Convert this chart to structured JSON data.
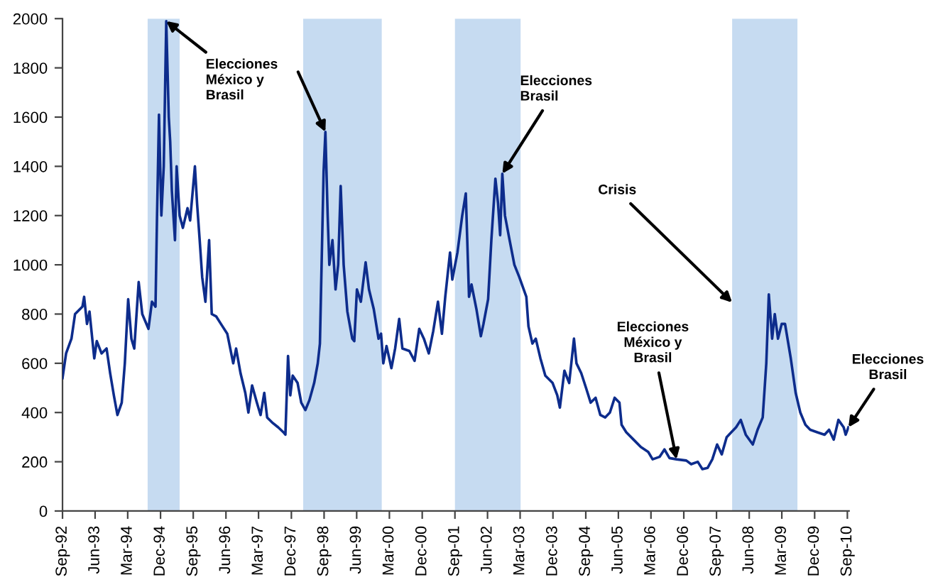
{
  "chart_data": {
    "type": "line",
    "x": [
      "1992-09-01",
      "1992-10-01",
      "1992-11-15",
      "1992-12-15",
      "1993-02-15",
      "1993-03-01",
      "1993-03-25",
      "1993-04-15",
      "1993-05-25",
      "1993-06-15",
      "1993-07-25",
      "1993-09-05",
      "1993-10-05",
      "1993-11-05",
      "1993-12-05",
      "1994-01-10",
      "1994-02-05",
      "1994-03-05",
      "1994-04-01",
      "1994-04-25",
      "1994-06-01",
      "1994-07-01",
      "1994-08-22",
      "1994-09-20",
      "1994-10-20",
      "1994-11-01",
      "1994-11-18",
      "1994-12-08",
      "1994-12-28",
      "1995-01-18",
      "1995-02-08",
      "1995-02-20",
      "1995-03-06",
      "1995-04-01",
      "1995-04-15",
      "1995-05-10",
      "1995-06-06",
      "1995-07-15",
      "1995-08-06",
      "1995-09-15",
      "1995-10-03",
      "1995-10-25",
      "1995-11-15",
      "1995-12-12",
      "1996-01-12",
      "1996-02-03",
      "1996-03-12",
      "1996-04-20",
      "1996-06-12",
      "1996-08-01",
      "1996-08-25",
      "1996-10-01",
      "1996-11-10",
      "1996-12-06",
      "1997-01-06",
      "1997-02-15",
      "1997-03-18",
      "1997-04-18",
      "1997-05-12",
      "1997-06-22",
      "1997-08-12",
      "1997-09-25",
      "1997-10-12",
      "1997-11-03",
      "1997-11-22",
      "1997-12-12",
      "1998-01-22",
      "1998-02-22",
      "1998-03-28",
      "1998-05-01",
      "1998-06-10",
      "1998-07-10",
      "1998-07-28",
      "1998-08-28",
      "1998-09-12",
      "1998-10-01",
      "1998-10-15",
      "1998-11-10",
      "1998-12-06",
      "1998-12-28",
      "1999-01-18",
      "1999-02-12",
      "1999-03-15",
      "1999-04-25",
      "1999-05-12",
      "1999-06-03",
      "1999-07-06",
      "1999-08-15",
      "1999-09-12",
      "1999-10-22",
      "1999-12-01",
      "1999-12-22",
      "2000-01-10",
      "2000-02-06",
      "2000-03-18",
      "2000-04-18",
      "2000-05-22",
      "2000-06-18",
      "2000-08-15",
      "2000-09-28",
      "2000-11-06",
      "2000-12-15",
      "2001-01-25",
      "2001-03-03",
      "2001-04-12",
      "2001-05-15",
      "2001-06-12",
      "2001-07-22",
      "2001-08-10",
      "2001-09-22",
      "2001-11-01",
      "2001-12-01",
      "2001-12-28",
      "2002-01-18",
      "2002-02-28",
      "2002-04-06",
      "2002-04-28",
      "2002-06-06",
      "2002-07-03",
      "2002-08-06",
      "2002-08-28",
      "2002-09-15",
      "2002-10-03",
      "2002-10-25",
      "2002-12-03",
      "2003-01-12",
      "2003-02-22",
      "2003-04-22",
      "2003-05-10",
      "2003-06-12",
      "2003-07-10",
      "2003-08-18",
      "2003-09-28",
      "2003-11-28",
      "2004-01-06",
      "2004-01-28",
      "2004-03-06",
      "2004-04-15",
      "2004-05-25",
      "2004-06-15",
      "2004-07-25",
      "2004-09-03",
      "2004-10-12",
      "2004-11-22",
      "2005-01-01",
      "2005-02-10",
      "2005-03-22",
      "2005-05-01",
      "2005-06-10",
      "2005-06-28",
      "2005-08-06",
      "2005-10-06",
      "2005-12-06",
      "2006-02-06",
      "2006-03-15",
      "2006-05-12",
      "2006-06-22",
      "2006-08-03",
      "2006-10-01",
      "2006-12-22",
      "2007-02-01",
      "2007-03-28",
      "2007-05-06",
      "2007-06-18",
      "2007-07-28",
      "2007-09-06",
      "2007-10-15",
      "2007-11-25",
      "2008-01-03",
      "2008-02-12",
      "2008-03-22",
      "2008-05-03",
      "2008-07-01",
      "2008-08-10",
      "2008-09-22",
      "2008-10-22",
      "2008-11-12",
      "2008-12-10",
      "2009-01-01",
      "2009-01-28",
      "2009-02-28",
      "2009-03-28",
      "2009-05-15",
      "2009-06-25",
      "2009-08-03",
      "2009-09-15",
      "2009-10-25",
      "2009-12-22",
      "2010-02-22",
      "2010-04-01",
      "2010-05-10",
      "2010-06-18",
      "2010-08-01",
      "2010-08-18",
      "2010-09-10"
    ],
    "series": [
      {
        "color": "#0d2c8c",
        "values": [
          540,
          640,
          700,
          800,
          830,
          870,
          760,
          810,
          620,
          690,
          640,
          660,
          560,
          470,
          390,
          440,
          600,
          860,
          700,
          660,
          930,
          800,
          740,
          850,
          830,
          1180,
          1610,
          1200,
          1400,
          1990,
          1600,
          1500,
          1300,
          1100,
          1400,
          1200,
          1150,
          1230,
          1180,
          1400,
          1250,
          1100,
          950,
          850,
          1100,
          800,
          790,
          760,
          720,
          600,
          660,
          560,
          480,
          400,
          510,
          440,
          390,
          480,
          380,
          360,
          340,
          320,
          310,
          630,
          470,
          550,
          520,
          440,
          410,
          450,
          520,
          600,
          680,
          1380,
          1540,
          1200,
          1000,
          1100,
          900,
          1000,
          1320,
          1000,
          810,
          700,
          690,
          900,
          850,
          1010,
          900,
          820,
          700,
          720,
          600,
          670,
          580,
          660,
          780,
          660,
          650,
          610,
          740,
          700,
          640,
          730,
          850,
          720,
          870,
          1050,
          940,
          1050,
          1200,
          1290,
          870,
          920,
          820,
          710,
          760,
          860,
          1100,
          1350,
          1250,
          1120,
          1370,
          1200,
          1100,
          1000,
          950,
          870,
          750,
          680,
          700,
          620,
          550,
          520,
          470,
          420,
          570,
          520,
          700,
          600,
          560,
          500,
          440,
          460,
          390,
          380,
          400,
          460,
          440,
          350,
          320,
          290,
          260,
          240,
          210,
          220,
          250,
          215,
          210,
          205,
          190,
          200,
          170,
          175,
          210,
          270,
          230,
          300,
          320,
          340,
          370,
          310,
          270,
          330,
          380,
          600,
          880,
          700,
          800,
          700,
          760,
          760,
          620,
          480,
          400,
          350,
          330,
          320,
          310,
          330,
          290,
          370,
          340,
          310,
          340
        ]
      }
    ],
    "xlim": [
      "1992-09-01",
      "2010-09-15"
    ],
    "xticks": [
      {
        "value": "1992-09",
        "label": "Sep-92"
      },
      {
        "value": "1993-06",
        "label": "Jun-93"
      },
      {
        "value": "1994-03",
        "label": "Mar-94"
      },
      {
        "value": "1994-12",
        "label": "Dec-94"
      },
      {
        "value": "1995-09",
        "label": "Sep-95"
      },
      {
        "value": "1996-06",
        "label": "Jun-96"
      },
      {
        "value": "1997-03",
        "label": "Mar-97"
      },
      {
        "value": "1997-12",
        "label": "Dec-97"
      },
      {
        "value": "1998-09",
        "label": "Sep-98"
      },
      {
        "value": "1999-06",
        "label": "Jun-99"
      },
      {
        "value": "2000-03",
        "label": "Mar-00"
      },
      {
        "value": "2000-12",
        "label": "Dec-00"
      },
      {
        "value": "2001-09",
        "label": "Sep-01"
      },
      {
        "value": "2002-06",
        "label": "Jun-02"
      },
      {
        "value": "2003-03",
        "label": "Mar-03"
      },
      {
        "value": "2003-12",
        "label": "Dec-03"
      },
      {
        "value": "2004-09",
        "label": "Sep-04"
      },
      {
        "value": "2005-06",
        "label": "Jun-05"
      },
      {
        "value": "2006-03",
        "label": "Mar-06"
      },
      {
        "value": "2006-12",
        "label": "Dec-06"
      },
      {
        "value": "2007-09",
        "label": "Sep-07"
      },
      {
        "value": "2008-06",
        "label": "Jun-08"
      },
      {
        "value": "2009-03",
        "label": "Mar-09"
      },
      {
        "value": "2009-12",
        "label": "Dec-09"
      },
      {
        "value": "2010-09",
        "label": "Sep-10"
      }
    ],
    "ylim": [
      0,
      2000
    ],
    "yticks": [
      0,
      200,
      400,
      600,
      800,
      1000,
      1200,
      1400,
      1600,
      1800,
      2000
    ],
    "grid": false,
    "legend": false,
    "marker": "none",
    "line_style": "solid",
    "bands": [
      {
        "axis": "x",
        "from": "1994-08-15",
        "to": "1995-05-10",
        "color": "#c6dbf1"
      },
      {
        "axis": "x",
        "from": "1998-03-10",
        "to": "1999-12-28",
        "color": "#c6dbf1"
      },
      {
        "axis": "x",
        "from": "2001-09-01",
        "to": "2003-03-05",
        "color": "#c6dbf1"
      },
      {
        "axis": "x",
        "from": "2008-01-10",
        "to": "2009-07-10",
        "color": "#c6dbf1"
      }
    ],
    "annotations": [
      {
        "text": "Elecciones\nMéxico y\nBrasil",
        "x": "1995-01-18",
        "y": 1990
      },
      {
        "text": "Elecciones\nBrasil",
        "x": "2002-10-03",
        "y": 1370
      },
      {
        "text": "Crisis",
        "x": "2008-01-10",
        "y": 847
      },
      {
        "text": "Elecciones\nMéxico y\nBrasil",
        "x": "2006-10-01",
        "y": 210
      },
      {
        "text": "Elecciones\nBrasil",
        "x": "2010-09-10",
        "y": 340
      }
    ]
  }
}
